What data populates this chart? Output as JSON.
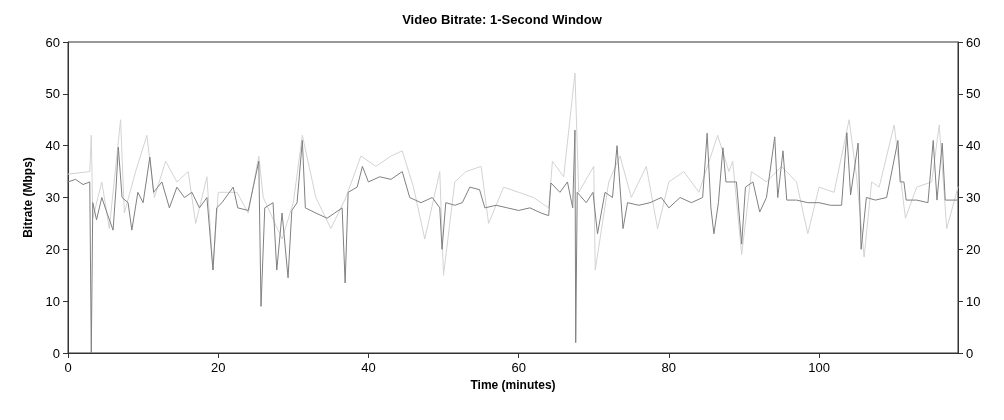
{
  "chart_data": {
    "type": "line",
    "title": "Video Bitrate: 1-Second Window",
    "xlabel": "Time (minutes)",
    "ylabel": "Bitrate (Mbps)",
    "xlim": [
      0,
      118.5
    ],
    "xticks": [
      0,
      20,
      40,
      60,
      80,
      100
    ],
    "ylim": [
      0,
      60
    ],
    "yticks": [
      0,
      10,
      20,
      30,
      40,
      50,
      60
    ],
    "y2lim": [
      0,
      60
    ],
    "y2ticks": [
      0,
      10,
      20,
      30,
      40,
      50,
      60
    ],
    "grid": false,
    "marker": "none",
    "line_style": "solid",
    "series": [
      {
        "color": "#d3d3d3",
        "x": [
          0,
          2.9,
          3.1,
          3.3,
          4.5,
          5.5,
          7,
          7.5,
          9,
          10.5,
          11.5,
          13,
          14.5,
          16,
          17,
          18.5,
          19.3,
          20,
          22.5,
          24,
          25.4,
          26,
          28.5,
          30,
          31.2,
          33,
          35,
          37,
          39,
          41,
          43,
          44.5,
          46,
          47.5,
          49.5,
          50,
          51.5,
          53,
          55,
          56,
          58,
          60,
          62,
          64,
          64.5,
          66,
          67.5,
          68,
          70,
          70.2,
          72,
          73.5,
          75,
          77,
          78.5,
          80,
          82,
          84,
          86.5,
          88,
          88.5,
          89.7,
          91,
          93,
          95,
          97,
          98.5,
          100,
          102,
          104,
          105,
          106,
          107,
          108,
          110,
          111.5,
          113,
          115,
          116,
          117,
          118.5
        ],
        "values": [
          34.5,
          35,
          42,
          26,
          33,
          24,
          45,
          27,
          35,
          42,
          30,
          37,
          33,
          35,
          25,
          34,
          16,
          31,
          31,
          27,
          38,
          30,
          22,
          29,
          42,
          30,
          24,
          30,
          38,
          36,
          38,
          39,
          32,
          22,
          35,
          15,
          33,
          35,
          36,
          25,
          32,
          31,
          30,
          28,
          37,
          34,
          54,
          31,
          36,
          16,
          33,
          38,
          30,
          36,
          24,
          33,
          35,
          31,
          42,
          35,
          37,
          19,
          35,
          33,
          36,
          33,
          23,
          32,
          31,
          45,
          34,
          18.5,
          33,
          32,
          44,
          26,
          32,
          33,
          44,
          24,
          32
        ]
      },
      {
        "color": "#808080",
        "x": [
          0,
          1,
          2,
          2.9,
          3.1,
          3.3,
          3.8,
          4.5,
          5.2,
          6,
          6.4,
          6.7,
          7.2,
          8,
          8.5,
          9.3,
          10,
          10.9,
          11.4,
          12.5,
          13.5,
          14.5,
          15.5,
          16.5,
          17.5,
          18.5,
          19.3,
          19.8,
          20.5,
          22,
          22.6,
          24,
          25.4,
          25.7,
          26.2,
          27.3,
          27.8,
          28.5,
          29.3,
          29.8,
          30.5,
          31.2,
          31.6,
          33,
          34.5,
          35.5,
          36.5,
          36.9,
          37.3,
          38.5,
          39.2,
          40,
          41.5,
          43,
          44.5,
          45.5,
          47,
          48.5,
          49.5,
          49.8,
          50.3,
          51.5,
          52.5,
          53.5,
          54.8,
          55.5,
          57,
          58.5,
          60,
          61.5,
          63,
          64,
          64.3,
          65.5,
          66.5,
          67.2,
          67.5,
          67.6,
          67.8,
          69,
          69.9,
          70.5,
          71.5,
          72.5,
          73.1,
          73.9,
          74.5,
          76,
          77.5,
          79,
          80,
          81.5,
          83,
          84.5,
          85.1,
          85.6,
          86,
          86.6,
          87.2,
          87.6,
          89,
          89.7,
          90.2,
          91.2,
          92.1,
          93,
          94.1,
          94.5,
          95.2,
          95.7,
          97,
          98.5,
          100,
          101.5,
          103,
          103.7,
          104.2,
          105.2,
          105.6,
          106.3,
          107.5,
          109,
          110.5,
          110.8,
          111.3,
          111.6,
          113,
          114.5,
          115.2,
          115.7,
          116.4,
          116.8,
          118.5
        ],
        "values": [
          33,
          33.5,
          32.5,
          33,
          0,
          29,
          25.7,
          30,
          27,
          23.7,
          32,
          39.7,
          30,
          29,
          23.7,
          31,
          29,
          37.8,
          31,
          33,
          28,
          32,
          30,
          31,
          28,
          30,
          16,
          28,
          29,
          32,
          28,
          27.5,
          37,
          9,
          28,
          29,
          16,
          27,
          14.5,
          27.5,
          29,
          41,
          28,
          27,
          26,
          27,
          28,
          13.5,
          31,
          32,
          36,
          33,
          34,
          33.5,
          35,
          30,
          29,
          30,
          28,
          20,
          29,
          28.5,
          29,
          32,
          31.5,
          28,
          28.5,
          28,
          27.5,
          28,
          27,
          26.5,
          32.8,
          31,
          33,
          28,
          43,
          2,
          31,
          29,
          31,
          23,
          31,
          30,
          40,
          24,
          29,
          28.5,
          29,
          30,
          28,
          30,
          29,
          30,
          42.4,
          28,
          23,
          29,
          39.6,
          33,
          33,
          21,
          32,
          33,
          27.2,
          30,
          41.7,
          30,
          39,
          29.5,
          29.5,
          29,
          29,
          28.5,
          28.5,
          42.5,
          30.5,
          40.5,
          20,
          30,
          29.5,
          30,
          41,
          33,
          33,
          29.5,
          29.5,
          29,
          41,
          29.5,
          40.5,
          29.5,
          29.5
        ]
      }
    ]
  }
}
